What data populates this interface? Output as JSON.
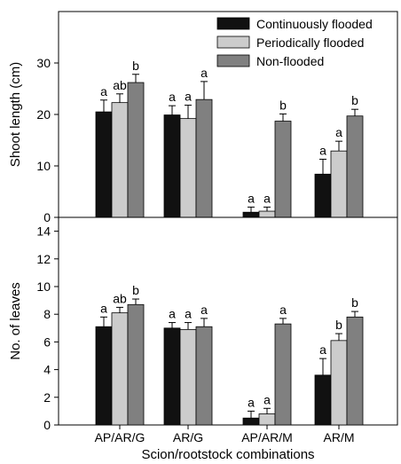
{
  "chart_data": [
    {
      "type": "bar",
      "ylabel": "Shoot length (cm)",
      "ylim": [
        0,
        40
      ],
      "yticks": [
        0,
        10,
        20,
        30
      ],
      "categories": [
        "AP/AR/G",
        "AR/G",
        "AP/AR/M",
        "AR/M"
      ],
      "series": [
        {
          "name": "Continuously flooded",
          "color": "#111111",
          "values": [
            20.5,
            19.9,
            1.0,
            8.4
          ],
          "errors": [
            2.3,
            1.8,
            1.0,
            2.9
          ],
          "letters": [
            "a",
            "a",
            "a",
            "a"
          ]
        },
        {
          "name": "Periodically flooded",
          "color": "#cccccc",
          "values": [
            22.3,
            19.2,
            1.2,
            12.9
          ],
          "errors": [
            1.7,
            2.6,
            0.8,
            1.9
          ],
          "letters": [
            "ab",
            "a",
            "a",
            "a"
          ]
        },
        {
          "name": "Non-flooded",
          "color": "#808080",
          "values": [
            26.2,
            22.9,
            18.7,
            19.7
          ],
          "errors": [
            1.6,
            3.5,
            1.4,
            1.3
          ],
          "letters": [
            "b",
            "a",
            "b",
            "b"
          ]
        }
      ],
      "legend": "top-right"
    },
    {
      "type": "bar",
      "ylabel": "No. of leaves",
      "xlabel": "Scion/rootstock combinations",
      "ylim": [
        0,
        15
      ],
      "yticks": [
        0,
        2,
        4,
        6,
        8,
        10,
        12,
        14
      ],
      "categories": [
        "AP/AR/G",
        "AR/G",
        "AP/AR/M",
        "AR/M"
      ],
      "series": [
        {
          "name": "Continuously flooded",
          "color": "#111111",
          "values": [
            7.1,
            7.0,
            0.5,
            3.6
          ],
          "errors": [
            0.7,
            0.4,
            0.5,
            1.2
          ],
          "letters": [
            "a",
            "a",
            "a",
            "a"
          ]
        },
        {
          "name": "Periodically flooded",
          "color": "#cccccc",
          "values": [
            8.1,
            6.9,
            0.8,
            6.1
          ],
          "errors": [
            0.4,
            0.5,
            0.4,
            0.5
          ],
          "letters": [
            "ab",
            "a",
            "a",
            "b"
          ]
        },
        {
          "name": "Non-flooded",
          "color": "#808080",
          "values": [
            8.7,
            7.1,
            7.3,
            7.8
          ],
          "errors": [
            0.4,
            0.6,
            0.4,
            0.4
          ],
          "letters": [
            "b",
            "a",
            "a",
            "b"
          ]
        }
      ]
    }
  ]
}
